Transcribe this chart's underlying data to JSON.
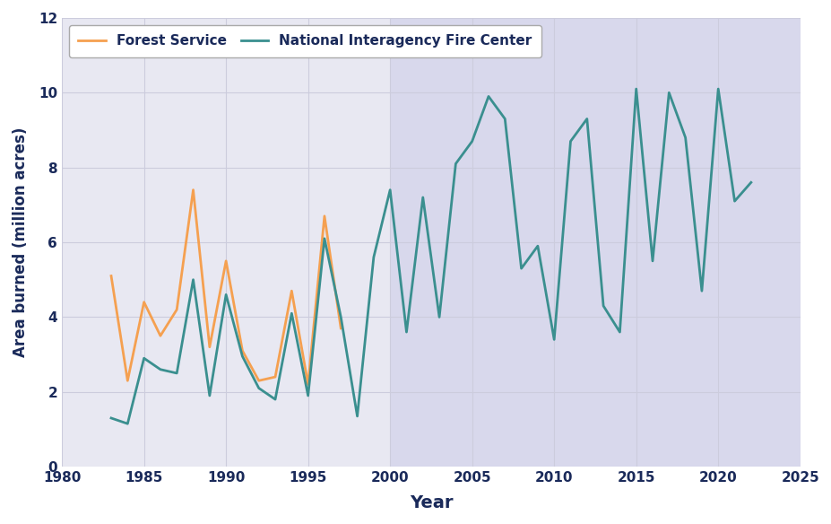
{
  "forest_service": {
    "years": [
      1983,
      1984,
      1985,
      1986,
      1987,
      1988,
      1989,
      1990,
      1991,
      1992,
      1993,
      1994,
      1995,
      1996,
      1997
    ],
    "values": [
      5.1,
      2.3,
      4.4,
      3.5,
      4.2,
      7.4,
      3.2,
      5.5,
      3.1,
      2.3,
      2.4,
      4.7,
      2.2,
      6.7,
      3.7
    ]
  },
  "nifc": {
    "years": [
      1983,
      1984,
      1985,
      1986,
      1987,
      1988,
      1989,
      1990,
      1991,
      1992,
      1993,
      1994,
      1995,
      1996,
      1997,
      1998,
      1999,
      2000,
      2001,
      2002,
      2003,
      2004,
      2005,
      2006,
      2007,
      2008,
      2009,
      2010,
      2011,
      2012,
      2013,
      2014,
      2015,
      2016,
      2017,
      2018,
      2019,
      2020,
      2021,
      2022
    ],
    "values": [
      1.3,
      1.15,
      2.9,
      2.6,
      2.5,
      5.0,
      1.9,
      4.6,
      2.95,
      2.1,
      1.8,
      4.1,
      1.9,
      6.1,
      4.0,
      1.35,
      5.6,
      7.4,
      3.6,
      7.2,
      4.0,
      8.1,
      8.7,
      9.9,
      9.3,
      5.3,
      5.9,
      3.4,
      8.7,
      9.3,
      4.3,
      3.6,
      10.1,
      5.5,
      10.0,
      8.8,
      4.7,
      10.1,
      7.1,
      7.6
    ]
  },
  "forest_service_color": "#f5a050",
  "nifc_color": "#3a8f8f",
  "plot_bg_color": "#e8e8f2",
  "right_bg_color": "#d8d8ec",
  "figure_bg_color": "#ffffff",
  "grid_color": "#ccccdd",
  "text_color": "#1a2a5a",
  "xlabel": "Year",
  "ylabel": "Area burned (million acres)",
  "xlim": [
    1980,
    2025
  ],
  "ylim": [
    0,
    12
  ],
  "yticks": [
    0,
    2,
    4,
    6,
    8,
    10,
    12
  ],
  "xticks": [
    1980,
    1985,
    1990,
    1995,
    2000,
    2005,
    2010,
    2015,
    2020,
    2025
  ],
  "legend_fs_label": "Forest Service",
  "legend_nifc_label": "National Interagency Fire Center",
  "linewidth": 2.0,
  "shade_start_year": 2000
}
